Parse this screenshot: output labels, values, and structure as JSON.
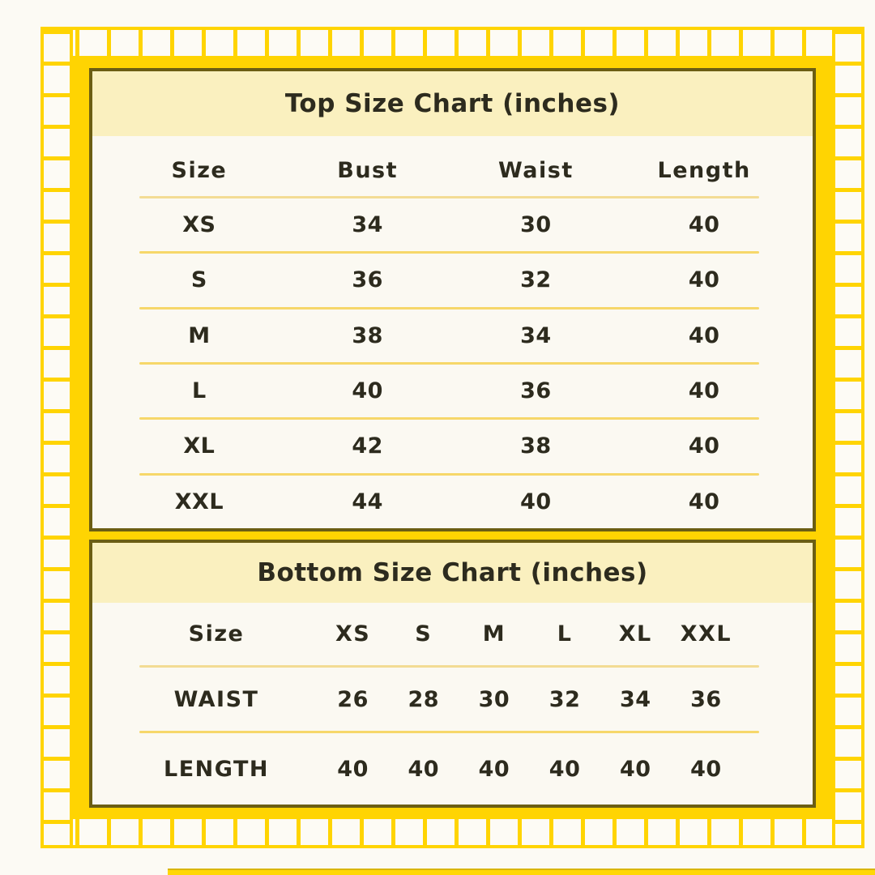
{
  "colors": {
    "background": "#FCFAF4",
    "accent_yellow": "#FFD402",
    "panel_border_olive": "#6B5E14",
    "header_band": "#FAF0BF",
    "panel_background": "#FBF9F2",
    "row_separator": "#F6D76A",
    "text": "#2D2B1E"
  },
  "top_chart": {
    "title": "Top Size Chart (inches)",
    "header": [
      "Size",
      "Bust",
      "Waist",
      "Length"
    ],
    "rows": [
      [
        "XS",
        "34",
        "30",
        "40"
      ],
      [
        "S",
        "36",
        "32",
        "40"
      ],
      [
        "M",
        "38",
        "34",
        "40"
      ],
      [
        "L",
        "40",
        "36",
        "40"
      ],
      [
        "XL",
        "42",
        "38",
        "40"
      ],
      [
        "XXL",
        "44",
        "40",
        "40"
      ]
    ]
  },
  "bottom_chart": {
    "title": "Bottom Size Chart (inches)",
    "header": [
      "Size",
      "XS",
      "S",
      "M",
      "L",
      "XL",
      "XXL"
    ],
    "rows": [
      [
        "WAIST",
        "26",
        "28",
        "30",
        "32",
        "34",
        "36"
      ],
      [
        "LENGTH",
        "40",
        "40",
        "40",
        "40",
        "40",
        "40"
      ]
    ]
  }
}
